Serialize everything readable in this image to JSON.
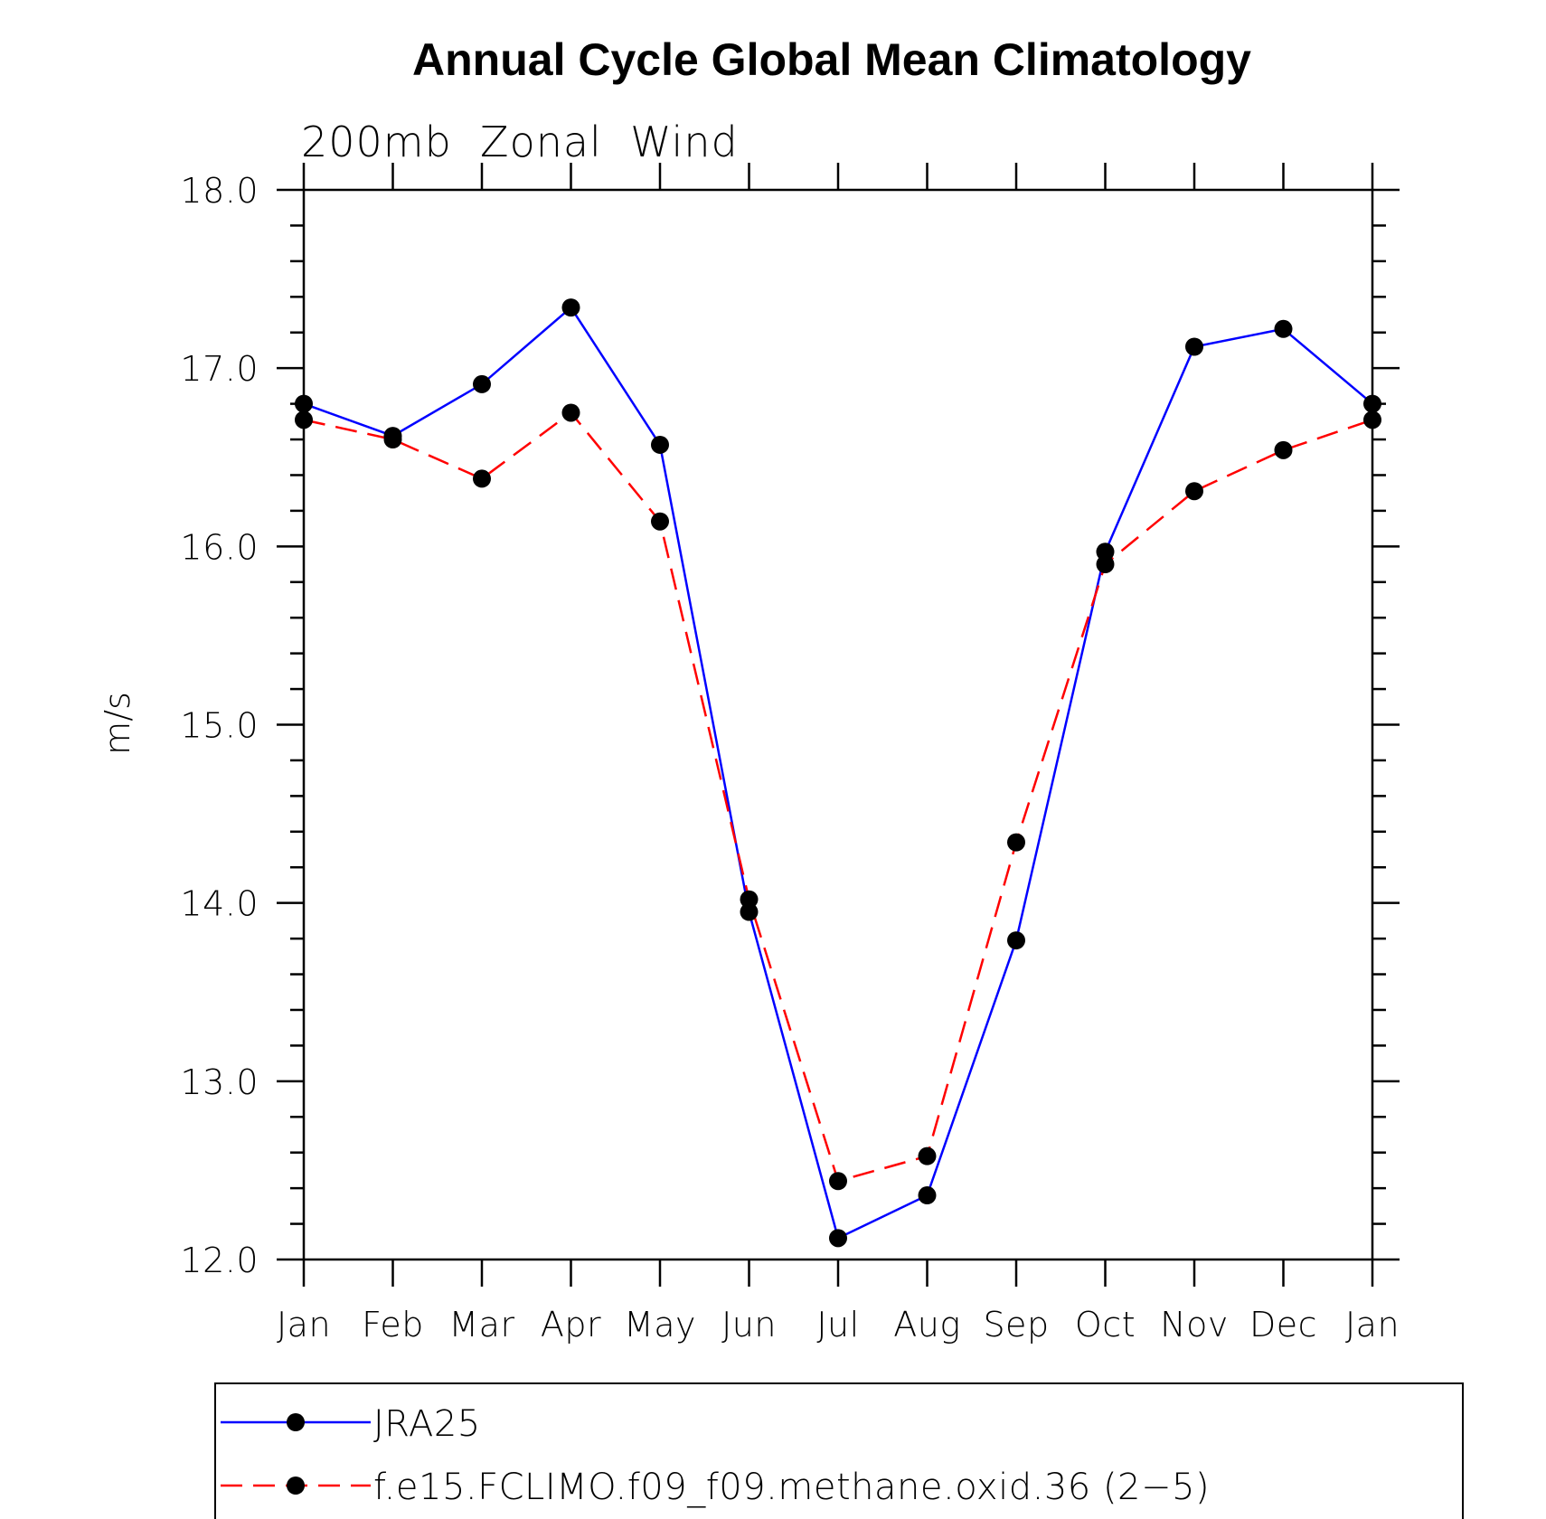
{
  "chart_data": {
    "type": "line",
    "title": "Annual Cycle Global Mean Climatology",
    "subtitle": "200mb  Zonal  Wind",
    "xlabel": "",
    "ylabel": "m/s",
    "categories": [
      "Jan",
      "Feb",
      "Mar",
      "Apr",
      "May",
      "Jun",
      "Jul",
      "Aug",
      "Sep",
      "Oct",
      "Nov",
      "Dec",
      "Jan"
    ],
    "ylim": [
      12.0,
      18.0
    ],
    "yticks": [
      "12.0",
      "13.0",
      "14.0",
      "15.0",
      "16.0",
      "17.0",
      "18.0"
    ],
    "grid": false,
    "legend_position": "bottom",
    "series": [
      {
        "name": "JRA25",
        "color": "#0000ff",
        "line_style": "solid",
        "marker": "filled-circle",
        "values": [
          16.8,
          16.62,
          16.91,
          17.34,
          16.57,
          13.95,
          12.12,
          12.36,
          13.79,
          15.97,
          17.12,
          17.22,
          16.8
        ]
      },
      {
        "name": "f.e15.FCLIMO.f09_f09.methane.oxid.36 (2−5)",
        "color": "#ff0000",
        "line_style": "dashed",
        "marker": "filled-circle",
        "values": [
          16.71,
          16.6,
          16.38,
          16.75,
          16.14,
          14.02,
          12.44,
          12.58,
          14.34,
          15.9,
          16.31,
          16.54,
          16.71
        ]
      }
    ]
  }
}
